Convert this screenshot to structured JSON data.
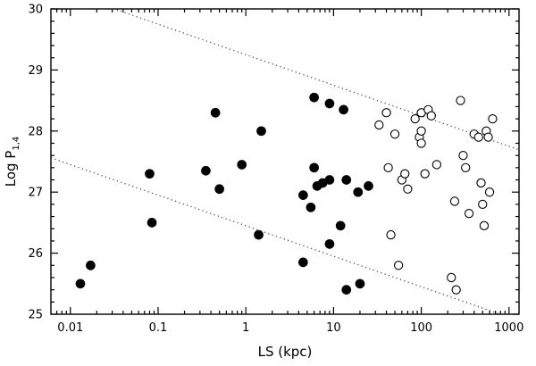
{
  "chart_data": {
    "type": "scatter",
    "title": "",
    "xlabel": "LS (kpc)",
    "ylabel_main": "Log P",
    "ylabel_sub": "1,4",
    "x_scale": "log",
    "y_scale": "linear",
    "xlim": [
      0.006,
      1300
    ],
    "ylim": [
      25,
      30
    ],
    "x_ticks": [
      0.01,
      0.1,
      1,
      10,
      100,
      1000
    ],
    "x_tick_labels": [
      "0.01",
      "0.1",
      "1",
      "10",
      "100",
      "1000"
    ],
    "y_ticks": [
      25,
      26,
      27,
      28,
      29,
      30
    ],
    "y_tick_labels": [
      "25",
      "26",
      "27",
      "28",
      "29",
      "30"
    ],
    "grid": false,
    "legend": "none",
    "frame_color": "#000000",
    "background_color": "#ffffff",
    "dotted_line_color": "#3a3a3a",
    "series": [
      {
        "name": "filled-circles",
        "marker": "filled-circle",
        "color": "#000000",
        "points": [
          [
            0.013,
            25.5
          ],
          [
            0.017,
            25.8
          ],
          [
            0.08,
            27.3
          ],
          [
            0.085,
            26.5
          ],
          [
            0.35,
            27.35
          ],
          [
            0.45,
            28.3
          ],
          [
            0.5,
            27.05
          ],
          [
            0.9,
            27.45
          ],
          [
            1.5,
            28.0
          ],
          [
            1.4,
            26.3
          ],
          [
            4.5,
            25.85
          ],
          [
            4.5,
            26.95
          ],
          [
            5.5,
            26.75
          ],
          [
            6,
            28.55
          ],
          [
            6,
            27.4
          ],
          [
            6.5,
            27.1
          ],
          [
            7.5,
            27.15
          ],
          [
            9,
            28.45
          ],
          [
            9,
            27.2
          ],
          [
            9,
            26.15
          ],
          [
            12,
            26.45
          ],
          [
            13,
            28.35
          ],
          [
            14,
            27.2
          ],
          [
            14,
            25.4
          ],
          [
            20,
            25.5
          ],
          [
            19,
            27.0
          ],
          [
            25,
            27.1
          ]
        ]
      },
      {
        "name": "open-circles",
        "marker": "open-circle",
        "color": "#000000",
        "points": [
          [
            33,
            28.1
          ],
          [
            40,
            28.3
          ],
          [
            42,
            27.4
          ],
          [
            45,
            26.3
          ],
          [
            50,
            27.95
          ],
          [
            55,
            25.8
          ],
          [
            60,
            27.2
          ],
          [
            65,
            27.3
          ],
          [
            70,
            27.05
          ],
          [
            85,
            28.2
          ],
          [
            95,
            27.9
          ],
          [
            100,
            28.3
          ],
          [
            100,
            28.0
          ],
          [
            100,
            27.8
          ],
          [
            110,
            27.3
          ],
          [
            120,
            28.35
          ],
          [
            130,
            28.25
          ],
          [
            150,
            27.45
          ],
          [
            220,
            25.6
          ],
          [
            250,
            25.4
          ],
          [
            240,
            26.85
          ],
          [
            280,
            28.5
          ],
          [
            300,
            27.6
          ],
          [
            320,
            27.4
          ],
          [
            350,
            26.65
          ],
          [
            400,
            27.95
          ],
          [
            450,
            27.9
          ],
          [
            480,
            27.15
          ],
          [
            500,
            26.8
          ],
          [
            520,
            26.45
          ],
          [
            550,
            28.0
          ],
          [
            580,
            27.9
          ],
          [
            600,
            27.0
          ],
          [
            650,
            28.2
          ]
        ]
      }
    ],
    "lines": [
      {
        "name": "upper-dotted-line",
        "style": "dotted",
        "slope": -0.5,
        "intercept": 29.25
      },
      {
        "name": "lower-dotted-line",
        "style": "dotted",
        "slope": -0.5,
        "intercept": 26.45
      }
    ]
  }
}
